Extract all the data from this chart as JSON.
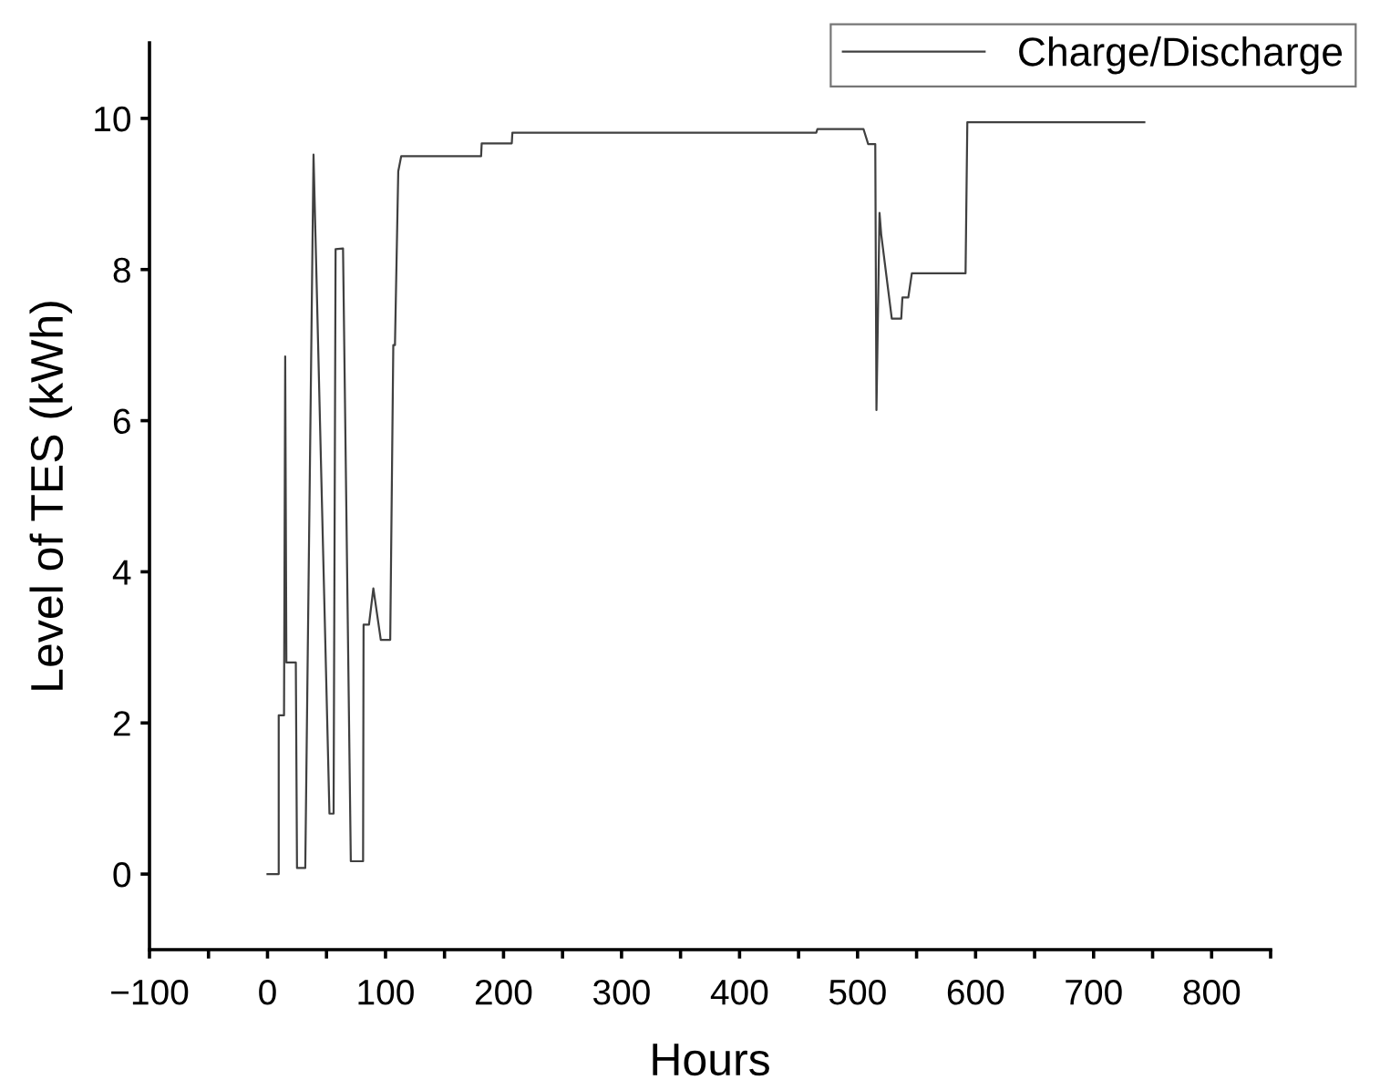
{
  "chart_data": {
    "type": "line",
    "xlabel": "Hours",
    "ylabel": "Level of TES (kWh)",
    "x": [
      0,
      9.5,
      9.5,
      14,
      15,
      16,
      24,
      25,
      32,
      39,
      52.5,
      56,
      57.7,
      64,
      70.6,
      81,
      81.4,
      86,
      89.7,
      96,
      104,
      106.6,
      108,
      110.8,
      113.3,
      181,
      181.5,
      207,
      207.5,
      465,
      466,
      505,
      509,
      515,
      516,
      518.6,
      520,
      529,
      537,
      538,
      543,
      546,
      591.5,
      593,
      743
    ],
    "series": [
      {
        "name": "Charge/Discharge",
        "color": "#404040",
        "values": [
          0,
          0,
          2.1,
          2.1,
          6.85,
          2.8,
          2.8,
          0.08,
          0.08,
          9.52,
          0.8,
          0.8,
          8.27,
          8.28,
          0.17,
          0.17,
          3.3,
          3.3,
          3.78,
          3.1,
          3.1,
          7.0,
          7.0,
          9.3,
          9.5,
          9.5,
          9.67,
          9.67,
          9.81,
          9.81,
          9.86,
          9.86,
          9.66,
          9.66,
          6.14,
          8.75,
          8.47,
          7.35,
          7.35,
          7.63,
          7.63,
          7.95,
          7.95,
          9.95,
          9.95
        ]
      }
    ],
    "xlim": [
      -100,
      850
    ],
    "xticks": [
      -100,
      {
        "value": -50,
        "label": null
      },
      0,
      {
        "value": 50,
        "label": null
      },
      100,
      {
        "value": 150,
        "label": null
      },
      200,
      {
        "value": 250,
        "label": null
      },
      300,
      {
        "value": 350,
        "label": null
      },
      400,
      {
        "value": 450,
        "label": null
      },
      500,
      {
        "value": 550,
        "label": null
      },
      600,
      {
        "value": 650,
        "label": null
      },
      700,
      {
        "value": 750,
        "label": null
      },
      800,
      {
        "value": 850,
        "label": null
      }
    ],
    "ylim": [
      -1,
      11
    ],
    "yticks": [
      0,
      2,
      4,
      6,
      8,
      10
    ],
    "grid": false,
    "legend": "top right",
    "line_style": "solid",
    "marker": "none"
  }
}
